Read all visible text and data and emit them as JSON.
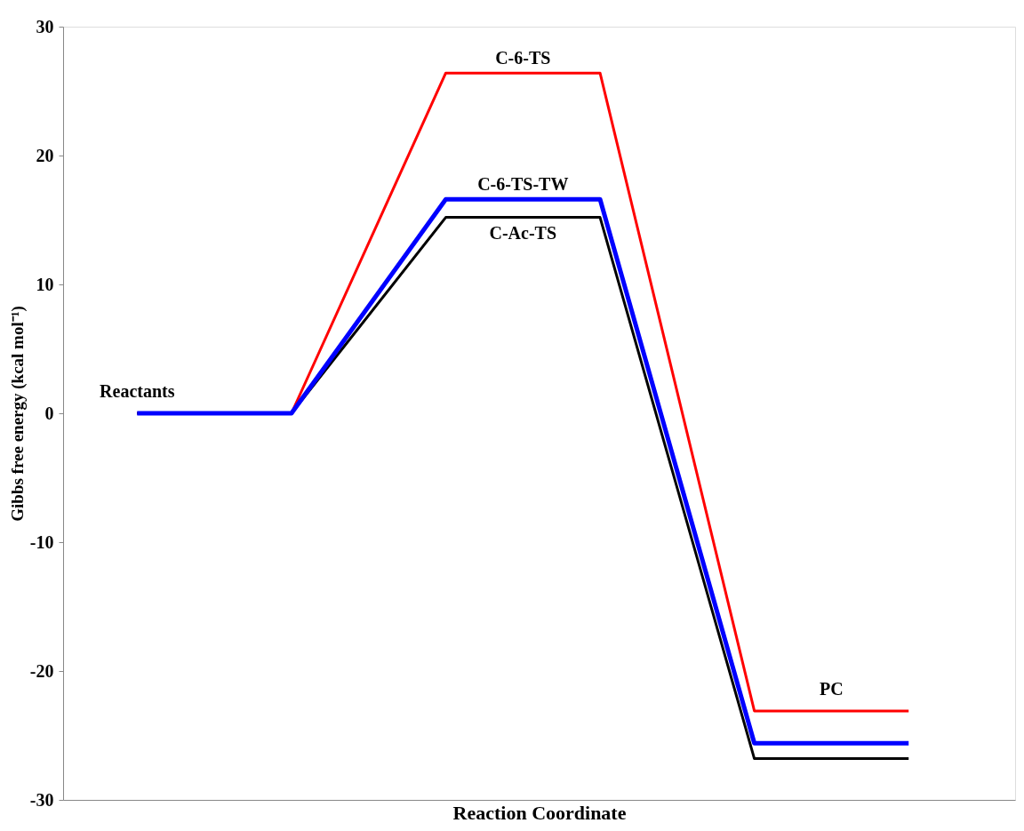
{
  "chart_data": {
    "type": "line",
    "xlabel": "Reaction Coordinate",
    "ylabel": "Gibbs free energy (kcal mol⁻¹)",
    "categories": [
      null,
      null,
      null,
      null,
      null,
      null
    ],
    "series": [
      {
        "name": "C-6-TS",
        "color": "#ff0000",
        "values": [
          0,
          0,
          26.4,
          26.4,
          -23.1,
          -23.1
        ]
      },
      {
        "name": "C-Ac-TS",
        "color": "#000000",
        "values": [
          0,
          0,
          15.2,
          15.2,
          -26.8,
          -26.8
        ]
      },
      {
        "name": "C-6-TS-TW",
        "color": "#0000ff",
        "values": [
          0,
          0,
          16.6,
          16.6,
          -25.6,
          -25.6
        ]
      }
    ],
    "annotations": [
      "Reactants",
      "PC"
    ],
    "ylim": [
      -30,
      30
    ],
    "yticks": [
      {
        "value": -30,
        "label": "-30"
      },
      {
        "value": -20,
        "label": "-20"
      },
      {
        "value": -10,
        "label": "-10"
      },
      0,
      10,
      20,
      30
    ],
    "tick_labels": "y",
    "grid": false,
    "marker": "none",
    "line_style": "solid"
  }
}
